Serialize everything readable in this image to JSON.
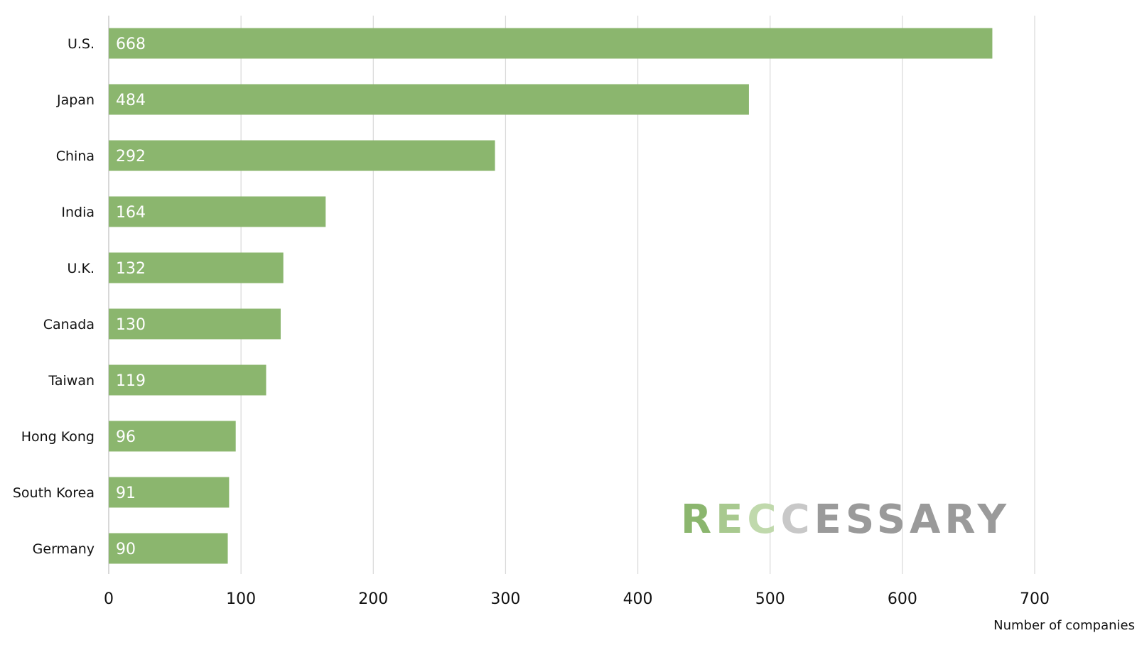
{
  "chart_data": {
    "type": "bar",
    "orientation": "horizontal",
    "categories": [
      "U.S.",
      "Japan",
      "China",
      "India",
      "U.K.",
      "Canada",
      "Taiwan",
      "Hong Kong",
      "South Korea",
      "Germany"
    ],
    "values": [
      668,
      484,
      292,
      164,
      132,
      130,
      119,
      96,
      91,
      90
    ],
    "value_labels": [
      "668",
      "484",
      "292",
      "164",
      "132",
      "130",
      "119",
      "96",
      "91",
      "90"
    ],
    "title": "",
    "xlabel": "Number of companies",
    "ylabel": "",
    "xlim": [
      0,
      700
    ],
    "x_ticks": [
      0,
      100,
      200,
      300,
      400,
      500,
      600,
      700
    ],
    "x_tick_labels": [
      "0",
      "100",
      "200",
      "300",
      "400",
      "500",
      "600",
      "700"
    ],
    "grid": "vertical",
    "legend": "none",
    "colors": {
      "bar": "#8bb66e",
      "grid": "#d9d9d9",
      "axis": "#bfbfbf",
      "label_text": "#111111",
      "value_text": "#ffffff"
    }
  },
  "watermark": {
    "text": "RECCESSARY",
    "colors": [
      "#8bb66e",
      "#a8c98f",
      "#c0d9ac",
      "#c8c8c8",
      "#9a9a9a",
      "#9a9a9a",
      "#9a9a9a",
      "#9a9a9a",
      "#9a9a9a",
      "#9a9a9a"
    ]
  }
}
